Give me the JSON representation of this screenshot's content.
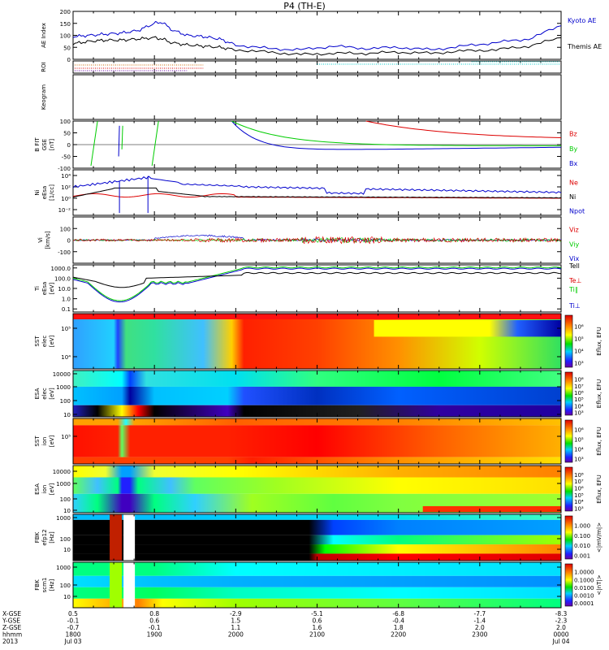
{
  "title": "P4 (TH-E)",
  "colors": {
    "kyoto": "#0000cc",
    "themis": "#000000",
    "red": "#dd0000",
    "green": "#00cc00",
    "blue": "#0000cc",
    "black": "#000000",
    "cyan": "#00cccc",
    "orange": "#cc6600"
  },
  "chart_data": [
    {
      "id": "ae",
      "type": "line",
      "ylabel": "AE Index",
      "ylim": [
        0,
        200
      ],
      "yticks": [
        "0",
        "50",
        "100",
        "150",
        "200"
      ],
      "x": [
        18.0,
        18.2,
        18.4,
        18.6,
        18.8,
        19.0,
        19.1,
        19.2,
        19.4,
        19.6,
        19.8,
        20.0,
        20.4,
        20.8,
        21.2,
        21.6,
        22.0,
        22.4,
        22.8,
        23.2,
        23.6,
        24.0
      ],
      "series": [
        {
          "name": "Kyoto AE",
          "values": [
            95,
            100,
            105,
            110,
            120,
            150,
            155,
            125,
            100,
            95,
            85,
            60,
            45,
            40,
            55,
            45,
            50,
            40,
            55,
            70,
            85,
            140
          ]
        },
        {
          "name": "Themis AE",
          "values": [
            65,
            75,
            80,
            80,
            85,
            90,
            85,
            70,
            60,
            55,
            50,
            40,
            30,
            20,
            25,
            25,
            30,
            25,
            35,
            40,
            55,
            90
          ]
        }
      ]
    },
    {
      "id": "roi",
      "type": "line",
      "ylabel": "ROI"
    },
    {
      "id": "keogram",
      "type": "line",
      "ylabel": "Keogram"
    },
    {
      "id": "bfield",
      "type": "line",
      "ylabel": "B FIT",
      "ylabel2": "GSE",
      "ylabel3": "[nT]",
      "ylim": [
        -100,
        100
      ],
      "yticks": [
        "-100",
        "-50",
        "0",
        "50",
        "100"
      ],
      "series": [
        {
          "name": "Bz",
          "values": []
        },
        {
          "name": "By",
          "values": []
        },
        {
          "name": "Bx",
          "values": []
        }
      ]
    },
    {
      "id": "density",
      "type": "line",
      "ylabel": "Ni",
      "ylabel2": "eEsa",
      "ylabel3": "[1/cc]",
      "yticks": [
        "10⁻²",
        "10⁰",
        "10²",
        "10⁴"
      ],
      "series": [
        {
          "name": "Ne",
          "values": []
        },
        {
          "name": "Ni",
          "values": []
        },
        {
          "name": "Npot",
          "values": []
        }
      ]
    },
    {
      "id": "velocity",
      "type": "line",
      "ylabel": "Vi",
      "ylabel3": "[km/s]",
      "ylim": [
        -200,
        200
      ],
      "yticks": [
        "-100",
        "0",
        "100"
      ],
      "series": [
        {
          "name": "Viz",
          "values": []
        },
        {
          "name": "Viy",
          "values": []
        },
        {
          "name": "Vix",
          "values": []
        }
      ]
    },
    {
      "id": "temp",
      "type": "line",
      "ylabel": "Ti",
      "ylabel2": "eEsa",
      "ylabel3": "[eV]",
      "yticks": [
        "0.1",
        "1.0",
        "10.0",
        "100.0",
        "1000.0"
      ],
      "series": [
        {
          "name": "Tell",
          "values": []
        },
        {
          "name": "Te⊥",
          "values": []
        },
        {
          "name": "Ti∥",
          "values": []
        },
        {
          "name": "Ti⊥",
          "values": []
        }
      ]
    },
    {
      "id": "sst_e",
      "type": "heatmap",
      "ylabel": "SST",
      "ylabel2": "elec",
      "ylabel3": "[eV]",
      "yticks": [
        "10⁴",
        "10⁵"
      ],
      "cbar_label": "Eflux, EFU",
      "cbar_ticks": [
        "10³",
        "10⁴",
        "10⁵",
        "10⁶"
      ]
    },
    {
      "id": "esa_e",
      "type": "heatmap",
      "ylabel": "ESA",
      "ylabel2": "elec",
      "ylabel3": "[eV]",
      "yticks": [
        "10",
        "100",
        "1000",
        "10000"
      ],
      "cbar_label": "Eflux, EFU",
      "cbar_ticks": [
        "10³",
        "10⁴",
        "10⁵",
        "10⁶",
        "10⁷",
        "10⁸"
      ]
    },
    {
      "id": "sst_i",
      "type": "heatmap",
      "ylabel": "SST",
      "ylabel2": "ion",
      "ylabel3": "[eV]",
      "yticks": [
        "10⁵"
      ],
      "cbar_label": "Eflux, EFU",
      "cbar_ticks": [
        "10³",
        "10⁴",
        "10⁵",
        "10⁶"
      ]
    },
    {
      "id": "esa_i",
      "type": "heatmap",
      "ylabel": "ESA",
      "ylabel2": "ion",
      "ylabel3": "[eV]",
      "yticks": [
        "10",
        "100",
        "1000",
        "10000"
      ],
      "cbar_label": "Eflux, EFU",
      "cbar_ticks": [
        "10³",
        "10⁴",
        "10⁵",
        "10⁶",
        "10⁷",
        "10⁸"
      ]
    },
    {
      "id": "fbk_e",
      "type": "heatmap",
      "ylabel": "FBK",
      "ylabel2": "efp12",
      "ylabel3": "[Hz]",
      "yticks": [
        "10",
        "100",
        "1000"
      ],
      "cbar_label": "<|mV/m|>",
      "cbar_ticks": [
        "0.001",
        "0.010",
        "0.100",
        "1.000"
      ]
    },
    {
      "id": "fbk_b",
      "type": "heatmap",
      "ylabel": "FBK",
      "ylabel2": "scm1",
      "ylabel3": "[Hz]",
      "yticks": [
        "10",
        "100",
        "1000"
      ],
      "cbar_label": "<|nT|>",
      "cbar_ticks": [
        "0.0001",
        "0.0010",
        "0.0100",
        "0.1000",
        "1.0000"
      ]
    }
  ],
  "xaxis": {
    "row_labels": [
      "X-GSE",
      "Y-GSE",
      "Z-GSE",
      "hhmm",
      "2013"
    ],
    "ticks": [
      {
        "x": 18,
        "vals": [
          "0.5",
          "-0.1",
          "-0.7",
          "1800",
          "Jul 03"
        ]
      },
      {
        "x": 19,
        "vals": [
          "0.8",
          "0.6",
          "-0.1",
          "1900",
          ""
        ]
      },
      {
        "x": 20,
        "vals": [
          "-2.9",
          "1.5",
          "1.1",
          "2000",
          ""
        ]
      },
      {
        "x": 21,
        "vals": [
          "-5.1",
          "0.6",
          "1.6",
          "2100",
          ""
        ]
      },
      {
        "x": 22,
        "vals": [
          "-6.8",
          "-0.4",
          "1.8",
          "2200",
          ""
        ]
      },
      {
        "x": 23,
        "vals": [
          "-7.7",
          "-1.4",
          "2.0",
          "2300",
          ""
        ]
      },
      {
        "x": 24,
        "vals": [
          "-8.3",
          "-2.3",
          "2.0",
          "0000",
          "Jul 04"
        ]
      }
    ],
    "xlim": [
      18,
      24
    ]
  }
}
